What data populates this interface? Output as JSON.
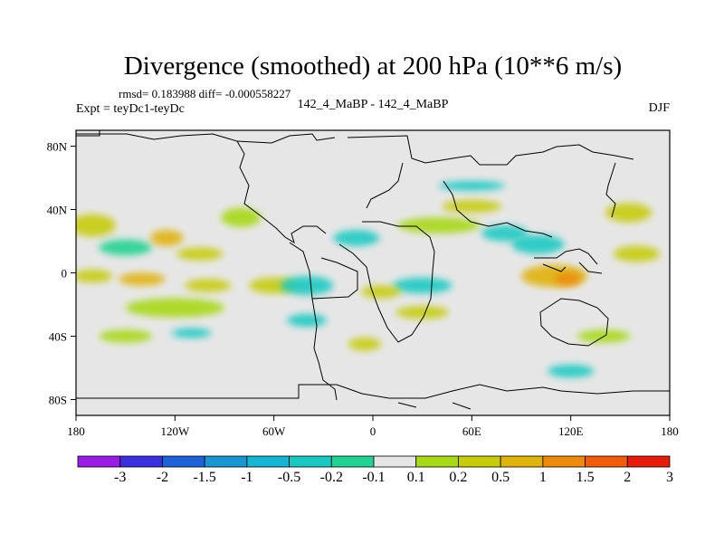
{
  "chart_data": {
    "type": "heatmap",
    "title": "Divergence (smoothed) at 200 hPa (10**6 m/s)",
    "stats": "rmsd= 0.183988  diff= -0.000558227",
    "experiment": "Expt = teyDc1-teyDc",
    "case": "142_4_MaBP - 142_4_MaBP",
    "season": "DJF",
    "projection": "cylindrical equidistant",
    "xlim": [
      -180,
      180
    ],
    "ylim": [
      -90,
      90
    ],
    "x_ticks": [
      {
        "value": -180,
        "label": "180"
      },
      {
        "value": -120,
        "label": "120W"
      },
      {
        "value": -60,
        "label": "60W"
      },
      {
        "value": 0,
        "label": "0"
      },
      {
        "value": 60,
        "label": "60E"
      },
      {
        "value": 120,
        "label": "120E"
      },
      {
        "value": 180,
        "label": "180"
      }
    ],
    "y_ticks": [
      {
        "value": 80,
        "label": "80N"
      },
      {
        "value": 40,
        "label": "40N"
      },
      {
        "value": 0,
        "label": "0"
      },
      {
        "value": -40,
        "label": "40S"
      },
      {
        "value": -80,
        "label": "80S"
      }
    ],
    "colorbar": {
      "boundaries": [
        "-3",
        "-2",
        "-1.5",
        "-1",
        "-0.5",
        "-0.2",
        "-0.1",
        "0.1",
        "0.2",
        "0.5",
        "1",
        "1.5",
        "2",
        "3"
      ],
      "colors": [
        "#9a1de6",
        "#3c2fde",
        "#1e62d8",
        "#1c96d3",
        "#16b6d2",
        "#1ac9c2",
        "#22d292",
        "#e6e6e6",
        "#a8d818",
        "#c6cc0c",
        "#e0b20c",
        "#ec8a0c",
        "#f25a0c",
        "#e81c0c"
      ]
    },
    "land_color": "#e6e6e6",
    "anomalies": [
      {
        "lon": -170,
        "lat": 30,
        "rlon": 14,
        "rlat": 7,
        "level": 9
      },
      {
        "lon": -150,
        "lat": 16,
        "rlon": 16,
        "rlat": 5,
        "level": 6
      },
      {
        "lon": -125,
        "lat": 22,
        "rlon": 10,
        "rlat": 5,
        "level": 10
      },
      {
        "lon": -105,
        "lat": 12,
        "rlon": 14,
        "rlat": 4,
        "level": 9
      },
      {
        "lon": -170,
        "lat": -2,
        "rlon": 12,
        "rlat": 4,
        "level": 9
      },
      {
        "lon": -140,
        "lat": -4,
        "rlon": 14,
        "rlat": 4,
        "level": 10
      },
      {
        "lon": -120,
        "lat": -22,
        "rlon": 30,
        "rlat": 6,
        "level": 8
      },
      {
        "lon": -100,
        "lat": -8,
        "rlon": 14,
        "rlat": 4,
        "level": 9
      },
      {
        "lon": -150,
        "lat": -40,
        "rlon": 16,
        "rlat": 4,
        "level": 8
      },
      {
        "lon": -110,
        "lat": -38,
        "rlon": 12,
        "rlat": 3,
        "level": 5
      },
      {
        "lon": -80,
        "lat": 35,
        "rlon": 12,
        "rlat": 6,
        "level": 8
      },
      {
        "lon": -60,
        "lat": -8,
        "rlon": 15,
        "rlat": 5,
        "level": 9
      },
      {
        "lon": -40,
        "lat": -8,
        "rlon": 16,
        "rlat": 6,
        "level": 5
      },
      {
        "lon": -10,
        "lat": 22,
        "rlon": 14,
        "rlat": 5,
        "level": 5
      },
      {
        "lon": 30,
        "lat": -8,
        "rlon": 18,
        "rlat": 5,
        "level": 5
      },
      {
        "lon": 40,
        "lat": 30,
        "rlon": 25,
        "rlat": 5,
        "level": 8
      },
      {
        "lon": 5,
        "lat": -12,
        "rlon": 12,
        "rlat": 4,
        "level": 9
      },
      {
        "lon": 80,
        "lat": 25,
        "rlon": 14,
        "rlat": 5,
        "level": 5
      },
      {
        "lon": 100,
        "lat": 18,
        "rlon": 16,
        "rlat": 6,
        "level": 5
      },
      {
        "lon": 110,
        "lat": -2,
        "rlon": 20,
        "rlat": 7,
        "level": 10
      },
      {
        "lon": 118,
        "lat": -4,
        "rlon": 8,
        "rlat": 4,
        "level": 11
      },
      {
        "lon": 160,
        "lat": 12,
        "rlon": 14,
        "rlat": 5,
        "level": 9
      },
      {
        "lon": 155,
        "lat": 38,
        "rlon": 14,
        "rlat": 6,
        "level": 9
      },
      {
        "lon": 60,
        "lat": 42,
        "rlon": 18,
        "rlat": 4,
        "level": 9
      },
      {
        "lon": 140,
        "lat": -40,
        "rlon": 16,
        "rlat": 4,
        "level": 8
      },
      {
        "lon": 120,
        "lat": -62,
        "rlon": 14,
        "rlat": 4,
        "level": 5
      },
      {
        "lon": -5,
        "lat": -45,
        "rlon": 10,
        "rlat": 4,
        "level": 9
      },
      {
        "lon": 30,
        "lat": -25,
        "rlon": 16,
        "rlat": 4,
        "level": 9
      },
      {
        "lon": 60,
        "lat": 55,
        "rlon": 20,
        "rlat": 3,
        "level": 5
      },
      {
        "lon": -40,
        "lat": -30,
        "rlon": 12,
        "rlat": 4,
        "level": 5
      }
    ]
  }
}
